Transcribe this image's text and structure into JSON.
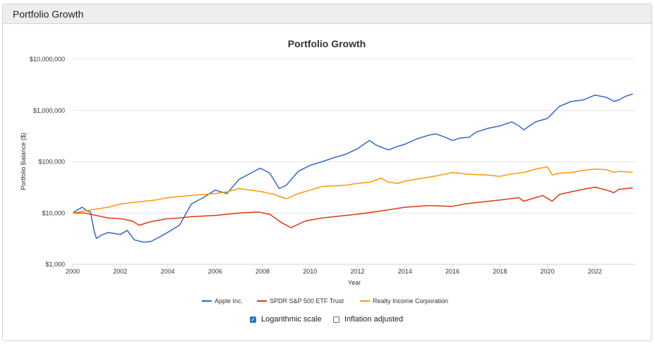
{
  "panel": {
    "title": "Portfolio Growth"
  },
  "chart_data": {
    "type": "line",
    "title": "Portfolio Growth",
    "xlabel": "Year",
    "ylabel": "Portfolio Balance ($)",
    "yscale": "log",
    "ylim": [
      1000,
      10000000
    ],
    "xlim": [
      2000,
      2023.7
    ],
    "ytick_labels": [
      "$1,000",
      "$10,000",
      "$100,000",
      "$1,000,000",
      "$10,000,000"
    ],
    "ytick_values": [
      1000,
      10000,
      100000,
      1000000,
      10000000
    ],
    "xtick_labels": [
      "2000",
      "2002",
      "2004",
      "2006",
      "2008",
      "2010",
      "2012",
      "2014",
      "2016",
      "2018",
      "2020",
      "2022"
    ],
    "legend_position": "bottom",
    "series": [
      {
        "name": "Apple Inc.",
        "color": "#3366cc",
        "x": [
          2000,
          2000.2,
          2000.4,
          2000.6,
          2000.75,
          2000.9,
          2001,
          2001.2,
          2001.5,
          2002,
          2002.3,
          2002.6,
          2003,
          2003.3,
          2003.7,
          2004,
          2004.5,
          2005,
          2005.5,
          2006,
          2006.5,
          2007,
          2007.5,
          2007.9,
          2008.3,
          2008.7,
          2009,
          2009.5,
          2010,
          2010.5,
          2011,
          2011.5,
          2012,
          2012.5,
          2012.8,
          2013.3,
          2013.7,
          2014,
          2014.5,
          2015,
          2015.3,
          2015.7,
          2016,
          2016.3,
          2016.7,
          2017,
          2017.5,
          2018,
          2018.5,
          2018.8,
          2019,
          2019.5,
          2020,
          2020.5,
          2021,
          2021.5,
          2022,
          2022.5,
          2022.8,
          2023,
          2023.3,
          2023.6
        ],
        "y": [
          10000,
          11500,
          13000,
          11000,
          10500,
          4500,
          3200,
          3700,
          4200,
          3800,
          4600,
          3000,
          2700,
          2800,
          3500,
          4200,
          5800,
          15000,
          20000,
          28000,
          24000,
          45000,
          60000,
          75000,
          60000,
          30000,
          35000,
          65000,
          85000,
          100000,
          120000,
          140000,
          180000,
          260000,
          210000,
          170000,
          200000,
          220000,
          280000,
          330000,
          350000,
          300000,
          260000,
          290000,
          300000,
          380000,
          450000,
          500000,
          600000,
          500000,
          420000,
          600000,
          700000,
          1200000,
          1500000,
          1600000,
          2000000,
          1800000,
          1500000,
          1600000,
          1900000,
          2100000
        ]
      },
      {
        "name": "SPDR S&P 500 ETF Trust",
        "color": "#dc3912",
        "x": [
          2000,
          2000.5,
          2001,
          2001.5,
          2002,
          2002.5,
          2002.8,
          2003.3,
          2004,
          2004.5,
          2005,
          2006,
          2007,
          2007.8,
          2008.3,
          2008.8,
          2009.2,
          2009.8,
          2010.5,
          2011.5,
          2012,
          2013,
          2014,
          2015,
          2016,
          2016.5,
          2017,
          2018,
          2018.8,
          2019,
          2019.8,
          2020.2,
          2020.5,
          2021,
          2021.5,
          2022,
          2022.5,
          2022.8,
          2023,
          2023.6
        ],
        "y": [
          10000,
          10000,
          9000,
          8000,
          7800,
          7000,
          5800,
          6800,
          7800,
          8000,
          8500,
          9000,
          10000,
          10500,
          9500,
          6500,
          5200,
          7000,
          8000,
          9000,
          9500,
          11000,
          13000,
          14000,
          13500,
          15000,
          16000,
          18000,
          20000,
          17000,
          22000,
          17000,
          23000,
          26000,
          29000,
          32000,
          28000,
          25000,
          29000,
          31000
        ]
      },
      {
        "name": "Realty Income Corporation",
        "color": "#ff9900",
        "x": [
          2000,
          2000.5,
          2001,
          2001.5,
          2002,
          2002.5,
          2003,
          2003.5,
          2004,
          2004.5,
          2005,
          2005.5,
          2006,
          2006.5,
          2007,
          2007.5,
          2008,
          2008.5,
          2009,
          2009.5,
          2010,
          2010.5,
          2011,
          2011.5,
          2012,
          2012.5,
          2013,
          2013.3,
          2013.7,
          2014,
          2014.5,
          2015,
          2015.5,
          2016,
          2016.5,
          2017,
          2017.5,
          2018,
          2018.5,
          2019,
          2019.5,
          2020,
          2020.2,
          2020.5,
          2021,
          2021.5,
          2022,
          2022.5,
          2022.8,
          2023,
          2023.6
        ],
        "y": [
          10000,
          11000,
          12000,
          13000,
          15000,
          16000,
          17000,
          18000,
          20000,
          21000,
          22000,
          23000,
          24000,
          26000,
          30000,
          28000,
          26000,
          23000,
          19000,
          24000,
          28000,
          33000,
          34000,
          35000,
          38000,
          40000,
          48000,
          40000,
          38000,
          42000,
          46000,
          50000,
          55000,
          62000,
          58000,
          56000,
          55000,
          52000,
          58000,
          62000,
          72000,
          80000,
          55000,
          60000,
          62000,
          68000,
          72000,
          70000,
          62000,
          65000,
          62000
        ]
      }
    ]
  },
  "controls": {
    "log_scale": {
      "label": "Logarithmic scale",
      "checked": true
    },
    "inflation": {
      "label": "Inflation adjusted",
      "checked": false
    }
  }
}
